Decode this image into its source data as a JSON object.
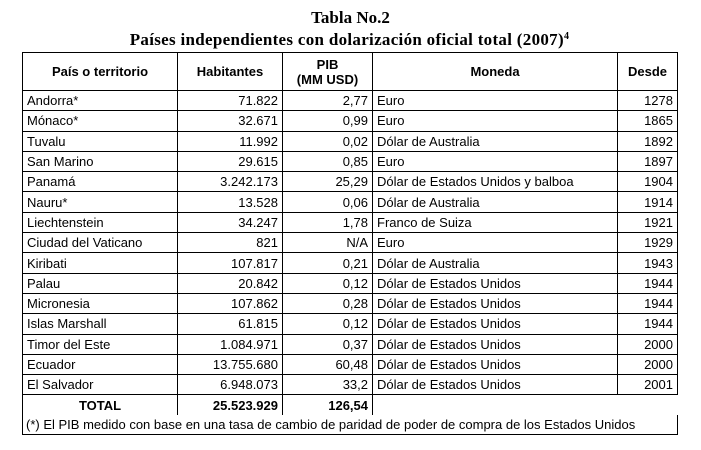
{
  "title": "Tabla No.2",
  "subtitle": "Países independientes con dolarización oficial total (2007)",
  "subtitle_footnote_ref": "4",
  "table": {
    "headers": [
      "País o territorio",
      "Habitantes",
      "PIB",
      "(MM USD)",
      "Moneda",
      "Desde"
    ],
    "rows": [
      [
        "Andorra*",
        "71.822",
        "2,77",
        "Euro",
        "1278"
      ],
      [
        "Mónaco*",
        "32.671",
        "0,99",
        "Euro",
        "1865"
      ],
      [
        "Tuvalu",
        "11.992",
        "0,02",
        "Dólar de Australia",
        "1892"
      ],
      [
        "San Marino",
        "29.615",
        "0,85",
        "Euro",
        "1897"
      ],
      [
        "Panamá",
        "3.242.173",
        "25,29",
        "Dólar de Estados Unidos y balboa",
        "1904"
      ],
      [
        "Nauru*",
        "13.528",
        "0,06",
        "Dólar de Australia",
        "1914"
      ],
      [
        "Liechtenstein",
        "34.247",
        "1,78",
        "Franco de Suiza",
        "1921"
      ],
      [
        "Ciudad del Vaticano",
        "821",
        "N/A",
        "Euro",
        "1929"
      ],
      [
        "Kiribati",
        "107.817",
        "0,21",
        "Dólar de Australia",
        "1943"
      ],
      [
        "Palau",
        "20.842",
        "0,12",
        "Dólar de Estados Unidos",
        "1944"
      ],
      [
        "Micronesia",
        "107.862",
        "0,28",
        "Dólar de Estados Unidos",
        "1944"
      ],
      [
        "Islas Marshall",
        "61.815",
        "0,12",
        "Dólar de Estados Unidos",
        "1944"
      ],
      [
        "Timor del Este",
        "1.084.971",
        "0,37",
        "Dólar de Estados Unidos",
        "2000"
      ],
      [
        "Ecuador",
        "13.755.680",
        "60,48",
        "Dólar de Estados Unidos",
        "2000"
      ],
      [
        "El Salvador",
        "6.948.073",
        "33,2",
        "Dólar de Estados Unidos",
        "2001"
      ]
    ],
    "total": {
      "label": "TOTAL",
      "habitantes": "25.523.929",
      "pib": "126,54"
    },
    "note": "(*) El PIB medido con base en una tasa de cambio de paridad de poder de compra de los Estados Unidos"
  }
}
